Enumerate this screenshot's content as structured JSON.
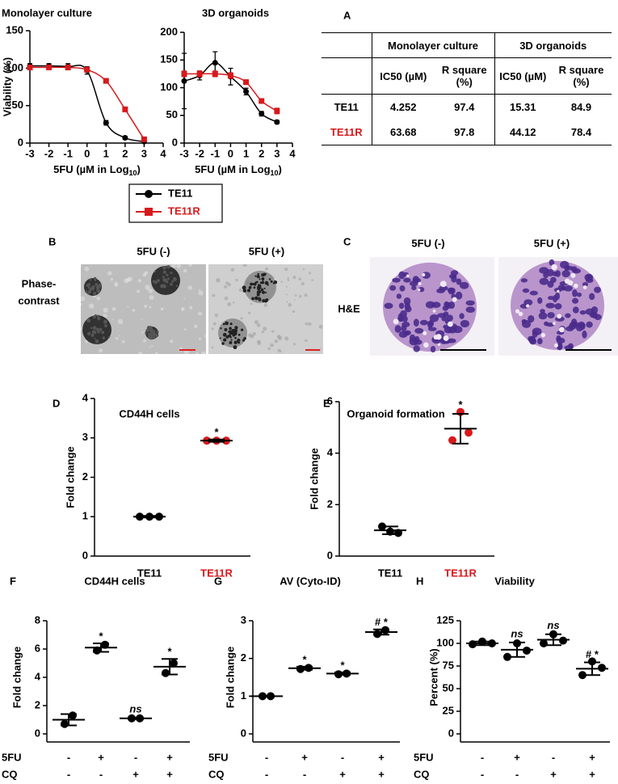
{
  "panel_labels": [
    "A",
    "B",
    "C",
    "D",
    "E",
    "F",
    "G",
    "H"
  ],
  "chart_data": [
    {
      "type": "line",
      "title": "Monolayer culture",
      "ylabel": "Viability (%)",
      "xlabel": [
        "5FU (µM in Log",
        "10",
        ")"
      ],
      "x": [
        -3,
        -2,
        -1,
        0,
        1,
        2,
        3
      ],
      "xlim": [
        -3,
        4
      ],
      "xticks": [
        -3,
        -2,
        -1,
        0,
        1,
        2,
        3,
        4
      ],
      "ylim": [
        0,
        150
      ],
      "yticks": [
        0,
        50,
        100,
        150
      ],
      "series": [
        {
          "name": "TE11",
          "color": "#000000",
          "marker": "circle",
          "values": [
            103,
            103,
            102,
            97,
            27,
            7,
            2
          ],
          "errors": [
            3,
            3,
            4,
            5,
            3,
            2,
            1
          ]
        },
        {
          "name": "TE11R",
          "color": "#d7191c",
          "marker": "square",
          "values": [
            101,
            101,
            101,
            98,
            83,
            45,
            5
          ],
          "errors": [
            2,
            2,
            2,
            3,
            3,
            3,
            1
          ]
        }
      ]
    },
    {
      "type": "line",
      "title": "3D organoids",
      "xlabel": [
        "5FU (µM in Log",
        "10",
        ")"
      ],
      "x": [
        -3,
        -2,
        -1,
        0,
        1,
        2,
        3
      ],
      "xlim": [
        -3,
        4
      ],
      "xticks": [
        -3,
        -2,
        -1,
        0,
        1,
        2,
        3,
        4
      ],
      "ylim": [
        0,
        200
      ],
      "yticks": [
        0,
        50,
        100,
        150,
        200
      ],
      "series": [
        {
          "color": "#000000",
          "marker": "circle",
          "values": [
            112,
            122,
            145,
            120,
            93,
            53,
            38
          ],
          "errors": [
            50,
            8,
            20,
            15,
            6,
            4,
            3
          ]
        },
        {
          "color": "#d7191c",
          "marker": "square",
          "values": [
            125,
            125,
            125,
            122,
            110,
            76,
            58
          ],
          "errors": [
            5,
            5,
            5,
            5,
            4,
            4,
            5
          ]
        }
      ]
    },
    {
      "type": "dot",
      "title": "CD44H cells",
      "ylabel": "Fold change",
      "ylim": [
        0,
        4
      ],
      "yticks": [
        0,
        1,
        2,
        3,
        4
      ],
      "groups": [
        {
          "label": "TE11",
          "label_color": "#000000",
          "color": "#000000",
          "points": [
            1,
            1,
            1
          ],
          "mean": 1,
          "sd": 0.02
        },
        {
          "label": "TE11R",
          "label_color": "#d7191c",
          "color": "#d7191c",
          "points": [
            2.93,
            2.93,
            2.93
          ],
          "mean": 2.93,
          "sd": 0.03,
          "annotation": "*"
        }
      ]
    },
    {
      "type": "dot",
      "title": "Organoid formation",
      "ylabel": "Fold change",
      "ylim": [
        0,
        6
      ],
      "yticks": [
        0,
        2,
        4,
        6
      ],
      "groups": [
        {
          "label": "TE11",
          "label_color": "#000000",
          "color": "#000000",
          "points": [
            1.15,
            0.95,
            0.9
          ],
          "mean": 1,
          "sd": 0.15
        },
        {
          "label": "TE11R",
          "label_color": "#d7191c",
          "color": "#d7191c",
          "points": [
            4.5,
            5.6,
            4.8
          ],
          "mean": 4.95,
          "sd": 0.58,
          "annotation": "*"
        }
      ]
    },
    {
      "type": "dot",
      "title": "CD44H cells",
      "ylabel": "Fold change",
      "ylim": [
        0,
        8
      ],
      "yticks": [
        0,
        2,
        4,
        6,
        8
      ],
      "groups": [
        {
          "color": "#000000",
          "points": [
            0.7,
            1.3
          ],
          "mean": 1,
          "sd": 0.4
        },
        {
          "color": "#000000",
          "points": [
            5.9,
            6.3
          ],
          "mean": 6.1,
          "sd": 0.3,
          "annotation": "*"
        },
        {
          "color": "#000000",
          "points": [
            1.1,
            1.1
          ],
          "mean": 1.1,
          "sd": 0.05,
          "annotation": "ns"
        },
        {
          "color": "#000000",
          "points": [
            4.3,
            5.0
          ],
          "mean": 4.75,
          "sd": 0.55,
          "annotation": "*"
        }
      ],
      "treatments": [
        {
          "name": "5FU",
          "signs": [
            "-",
            "+",
            "-",
            "+"
          ]
        },
        {
          "name": "CQ",
          "signs": [
            "-",
            "-",
            "+",
            "+"
          ]
        }
      ]
    },
    {
      "type": "dot",
      "title": "AV (Cyto-ID)",
      "ylabel": "Fold change",
      "ylim": [
        0,
        3
      ],
      "yticks": [
        0,
        1,
        2,
        3
      ],
      "groups": [
        {
          "color": "#000000",
          "points": [
            1.0,
            1.0
          ],
          "mean": 1,
          "sd": 0.01
        },
        {
          "color": "#000000",
          "points": [
            1.72,
            1.75
          ],
          "mean": 1.74,
          "sd": 0.04,
          "annotation": "*"
        },
        {
          "color": "#000000",
          "points": [
            1.58,
            1.6
          ],
          "mean": 1.6,
          "sd": 0.03,
          "annotation": "*"
        },
        {
          "color": "#000000",
          "points": [
            2.65,
            2.75
          ],
          "mean": 2.7,
          "sd": 0.07,
          "annotation": "#  *"
        }
      ],
      "treatments": [
        {
          "name": "5FU",
          "signs": [
            "-",
            "+",
            "-",
            "+"
          ]
        },
        {
          "name": "CQ",
          "signs": [
            "-",
            "-",
            "+",
            "+"
          ]
        }
      ]
    },
    {
      "type": "dot",
      "title": "Viability",
      "ylabel": "Percent (%)",
      "ylim": [
        0,
        125
      ],
      "yticks": [
        0,
        25,
        50,
        75,
        100,
        125
      ],
      "groups": [
        {
          "color": "#000000",
          "points": [
            99,
            102,
            100
          ],
          "mean": 100,
          "sd": 2
        },
        {
          "color": "#000000",
          "points": [
            85,
            100,
            92
          ],
          "mean": 93,
          "sd": 8,
          "annotation": "ns"
        },
        {
          "color": "#000000",
          "points": [
            100,
            110,
            103
          ],
          "mean": 104,
          "sd": 6,
          "annotation": "ns"
        },
        {
          "color": "#000000",
          "points": [
            65,
            80,
            73
          ],
          "mean": 72,
          "sd": 7,
          "annotation": "#  *"
        }
      ],
      "treatments": [
        {
          "name": "5FU",
          "signs": [
            "-",
            "+",
            "-",
            "+"
          ]
        },
        {
          "name": "CQ",
          "signs": [
            "-",
            "-",
            "+",
            "+"
          ]
        }
      ]
    }
  ],
  "table": {
    "column_groups": [
      "Monolayer culture",
      "3D organoids"
    ],
    "columns": [
      "IC50 (µM)",
      "R square (%)",
      "IC50 (µM)",
      "R square (%)"
    ],
    "rows": [
      {
        "label": "TE11",
        "color": "#000000",
        "cells": [
          4.252,
          97.4,
          15.31,
          84.9
        ]
      },
      {
        "label": "TE11R",
        "color": "#d7191c",
        "cells": [
          63.68,
          97.8,
          44.12,
          78.4
        ]
      }
    ]
  },
  "micrographs": [
    {
      "conditions": [
        "5FU (-)",
        "5FU (+)"
      ],
      "row_label": [
        "Phase-",
        "contrast"
      ]
    },
    {
      "conditions": [
        "5FU (-)",
        "5FU (+)"
      ],
      "row_label": [
        "H&E"
      ]
    }
  ]
}
